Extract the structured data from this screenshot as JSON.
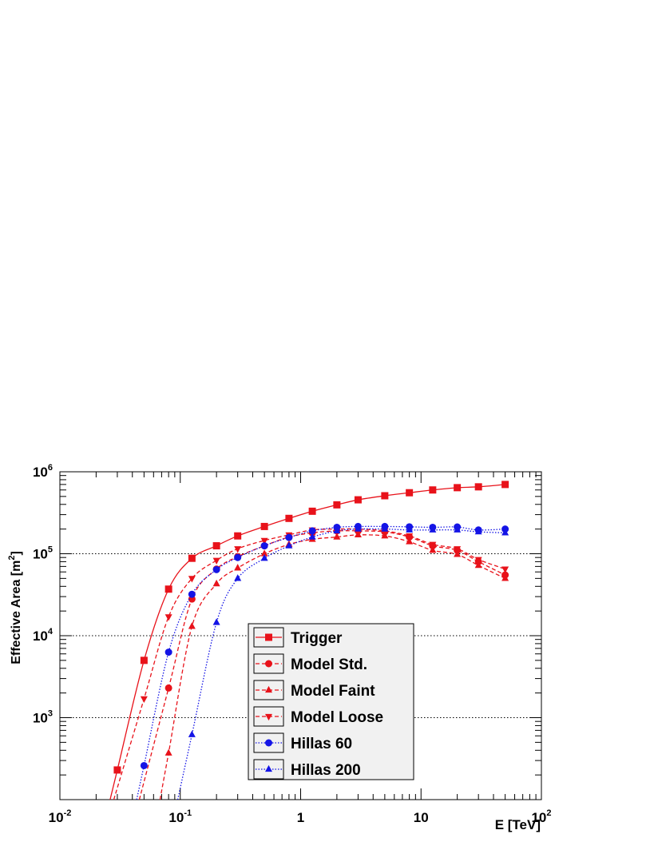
{
  "chart_data": {
    "type": "line",
    "title": "",
    "xlabel": "E [TeV]",
    "ylabel_main": "Effective Area [m",
    "ylabel_sup": "2",
    "ylabel_close": "]",
    "xscale": "log",
    "yscale": "log",
    "xlim": [
      0.01,
      100
    ],
    "ylim": [
      100,
      1000000
    ],
    "grid": "horizontal dotted at 10^3, 10^4, 10^5",
    "legend_position": "center-bottom",
    "x_ticks": [
      {
        "base": "10",
        "exp": "-2"
      },
      {
        "base": "10",
        "exp": "-1"
      },
      {
        "base": "1",
        "exp": ""
      },
      {
        "base": "10",
        "exp": ""
      },
      {
        "base": "10",
        "exp": "2"
      }
    ],
    "y_ticks": [
      {
        "base": "10",
        "exp": "3"
      },
      {
        "base": "10",
        "exp": "4"
      },
      {
        "base": "10",
        "exp": "5"
      },
      {
        "base": "10",
        "exp": "6"
      }
    ],
    "series": [
      {
        "name": "Trigger",
        "color": "#e8121a",
        "marker": "square",
        "line": "solid",
        "x": [
          0.03,
          0.05,
          0.08,
          0.125,
          0.2,
          0.3,
          0.5,
          0.8,
          1.25,
          2,
          3,
          5,
          8,
          12.5,
          20,
          30,
          50
        ],
        "y": [
          230,
          5000,
          37000,
          88000,
          125000,
          165000,
          215000,
          270000,
          330000,
          395000,
          455000,
          510000,
          555000,
          600000,
          640000,
          655000,
          700000
        ]
      },
      {
        "name": "Model Std.",
        "color": "#e8121a",
        "marker": "circle",
        "line": "dashed",
        "x": [
          0.08,
          0.125,
          0.2,
          0.3,
          0.5,
          0.8,
          1.25,
          2,
          3,
          5,
          8,
          12.5,
          20,
          30,
          50
        ],
        "y": [
          2300,
          28000,
          65000,
          92000,
          125000,
          160000,
          180000,
          190000,
          190000,
          185000,
          160000,
          125000,
          110000,
          80000,
          55000
        ]
      },
      {
        "name": "Model Faint",
        "color": "#e8121a",
        "marker": "triangle-up",
        "line": "dashed",
        "x": [
          0.08,
          0.125,
          0.2,
          0.3,
          0.5,
          0.8,
          1.25,
          2,
          3,
          5,
          8,
          12.5,
          20,
          30,
          50
        ],
        "y": [
          370,
          13000,
          43000,
          67000,
          100000,
          130000,
          150000,
          160000,
          170000,
          165000,
          140000,
          110000,
          98000,
          72000,
          50000
        ]
      },
      {
        "name": "Model Loose",
        "color": "#e8121a",
        "marker": "triangle-down",
        "line": "dashed",
        "x": [
          0.05,
          0.08,
          0.125,
          0.2,
          0.3,
          0.5,
          0.8,
          1.25,
          2,
          3,
          5,
          8,
          12.5,
          20,
          30,
          50
        ],
        "y": [
          1700,
          17000,
          50000,
          83000,
          115000,
          145000,
          170000,
          195000,
          200000,
          200000,
          190000,
          165000,
          130000,
          115000,
          85000,
          65000
        ]
      },
      {
        "name": "Hillas 60",
        "color": "#1414e6",
        "marker": "circle",
        "line": "dotted",
        "x": [
          0.05,
          0.08,
          0.125,
          0.2,
          0.3,
          0.5,
          0.8,
          1.25,
          2,
          3,
          5,
          8,
          12.5,
          20,
          30,
          50
        ],
        "y": [
          260,
          6300,
          32000,
          64000,
          90000,
          125000,
          158000,
          190000,
          210000,
          215000,
          215000,
          213000,
          210000,
          212000,
          195000,
          200000
        ]
      },
      {
        "name": "Hillas 200",
        "color": "#1414e6",
        "marker": "triangle-up",
        "line": "dotted",
        "x": [
          0.125,
          0.2,
          0.3,
          0.5,
          0.8,
          1.25,
          2,
          3,
          5,
          8,
          12.5,
          20,
          30,
          50
        ],
        "y": [
          620,
          14500,
          50000,
          88000,
          125000,
          160000,
          190000,
          200000,
          200000,
          195000,
          195000,
          195000,
          185000,
          180000
        ]
      }
    ]
  }
}
